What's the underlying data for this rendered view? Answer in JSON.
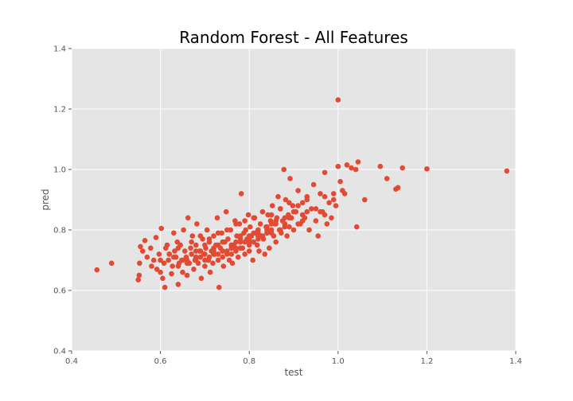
{
  "chart_data": {
    "type": "scatter",
    "title": "Random Forest - All Features",
    "xlabel": "test",
    "ylabel": "pred",
    "xlim": [
      0.4,
      1.4
    ],
    "ylim": [
      0.4,
      1.4
    ],
    "x_ticks": [
      "0.4",
      "0.6",
      "0.8",
      "1.0",
      "1.2",
      "1.4"
    ],
    "y_ticks": [
      "0.4",
      "0.6",
      "0.8",
      "1.0",
      "1.2",
      "1.4"
    ],
    "grid": true,
    "legend": "none",
    "colors": {
      "point": "#e24a33",
      "background": "#e5e5e5",
      "grid": "#ffffff"
    },
    "x": [
      0.457,
      0.49,
      0.55,
      0.552,
      0.553,
      0.555,
      0.56,
      0.565,
      0.57,
      0.578,
      0.58,
      0.585,
      0.59,
      0.592,
      0.597,
      0.6,
      0.602,
      0.605,
      0.608,
      0.61,
      0.612,
      0.615,
      0.618,
      0.62,
      0.625,
      0.627,
      0.63,
      0.632,
      0.635,
      0.638,
      0.64,
      0.642,
      0.645,
      0.648,
      0.65,
      0.652,
      0.655,
      0.658,
      0.66,
      0.662,
      0.665,
      0.668,
      0.67,
      0.672,
      0.675,
      0.678,
      0.68,
      0.682,
      0.685,
      0.688,
      0.69,
      0.692,
      0.695,
      0.698,
      0.7,
      0.702,
      0.705,
      0.708,
      0.71,
      0.712,
      0.715,
      0.718,
      0.72,
      0.722,
      0.725,
      0.728,
      0.73,
      0.732,
      0.735,
      0.738,
      0.74,
      0.742,
      0.745,
      0.748,
      0.75,
      0.752,
      0.755,
      0.758,
      0.76,
      0.762,
      0.765,
      0.768,
      0.77,
      0.772,
      0.775,
      0.778,
      0.78,
      0.782,
      0.785,
      0.788,
      0.79,
      0.792,
      0.795,
      0.798,
      0.8,
      0.802,
      0.805,
      0.808,
      0.81,
      0.812,
      0.815,
      0.818,
      0.82,
      0.822,
      0.825,
      0.828,
      0.83,
      0.832,
      0.835,
      0.838,
      0.84,
      0.842,
      0.845,
      0.848,
      0.85,
      0.852,
      0.855,
      0.858,
      0.86,
      0.862,
      0.865,
      0.868,
      0.87,
      0.872,
      0.875,
      0.878,
      0.88,
      0.882,
      0.885,
      0.888,
      0.89,
      0.892,
      0.895,
      0.898,
      0.9,
      0.905,
      0.91,
      0.915,
      0.92,
      0.925,
      0.93,
      0.935,
      0.94,
      0.945,
      0.95,
      0.955,
      0.96,
      0.965,
      0.97,
      0.975,
      0.98,
      0.985,
      0.99,
      0.995,
      1.0,
      1.005,
      1.01,
      1.015,
      1.02,
      1.03,
      1.04,
      1.042,
      1.045,
      1.06,
      1.095,
      1.11,
      1.13,
      1.135,
      1.145,
      1.2,
      1.38,
      1.0,
      0.6,
      0.62,
      0.64,
      0.66,
      0.68,
      0.7,
      0.72,
      0.74,
      0.76,
      0.78,
      0.8,
      0.82,
      0.84,
      0.86,
      0.88,
      0.9,
      0.66,
      0.68,
      0.7,
      0.72,
      0.74,
      0.76,
      0.78,
      0.8,
      0.82,
      0.84,
      0.86,
      0.7,
      0.72,
      0.74,
      0.76,
      0.78,
      0.8,
      0.82,
      0.84,
      0.74,
      0.76,
      0.78,
      0.8,
      0.82,
      0.67,
      0.69,
      0.71,
      0.73,
      0.75,
      0.77,
      0.79,
      0.81,
      0.83,
      0.85,
      0.87,
      0.89,
      0.91,
      0.93,
      0.95,
      0.97,
      0.99,
      0.63,
      0.65,
      0.69,
      0.73,
      0.77,
      0.81,
      0.85,
      0.89,
      0.93,
      0.97,
      0.68,
      0.72,
      0.76,
      0.8,
      0.84,
      0.88,
      0.92,
      0.96,
      0.71,
      0.75,
      0.79,
      0.83,
      0.87,
      0.91,
      0.73,
      0.77,
      0.81,
      0.85,
      0.64,
      0.68,
      0.72,
      0.76,
      0.8,
      0.84,
      0.88,
      0.92
    ],
    "y": [
      0.668,
      0.69,
      0.635,
      0.65,
      0.69,
      0.745,
      0.73,
      0.765,
      0.71,
      0.74,
      0.68,
      0.7,
      0.775,
      0.67,
      0.72,
      0.66,
      0.805,
      0.64,
      0.69,
      0.61,
      0.74,
      0.75,
      0.7,
      0.72,
      0.655,
      0.68,
      0.79,
      0.73,
      0.71,
      0.76,
      0.62,
      0.69,
      0.75,
      0.7,
      0.66,
      0.8,
      0.73,
      0.71,
      0.65,
      0.84,
      0.69,
      0.74,
      0.72,
      0.78,
      0.67,
      0.7,
      0.75,
      0.82,
      0.69,
      0.73,
      0.71,
      0.64,
      0.77,
      0.72,
      0.68,
      0.74,
      0.8,
      0.7,
      0.76,
      0.66,
      0.73,
      0.69,
      0.78,
      0.72,
      0.75,
      0.84,
      0.7,
      0.61,
      0.74,
      0.79,
      0.73,
      0.68,
      0.76,
      0.86,
      0.72,
      0.77,
      0.7,
      0.8,
      0.74,
      0.69,
      0.75,
      0.83,
      0.73,
      0.78,
      0.71,
      0.82,
      0.76,
      0.92,
      0.74,
      0.79,
      0.72,
      0.8,
      0.77,
      0.85,
      0.73,
      0.81,
      0.78,
      0.7,
      0.76,
      0.84,
      0.79,
      0.75,
      0.8,
      0.73,
      0.82,
      0.78,
      0.86,
      0.77,
      0.72,
      0.81,
      0.79,
      0.85,
      0.74,
      0.83,
      0.8,
      0.88,
      0.78,
      0.82,
      0.76,
      0.84,
      0.91,
      0.8,
      0.87,
      0.79,
      0.83,
      1.0,
      0.82,
      0.9,
      0.78,
      0.85,
      0.81,
      0.97,
      0.84,
      0.88,
      0.8,
      0.86,
      0.93,
      0.82,
      0.89,
      0.84,
      0.91,
      0.8,
      0.87,
      0.95,
      0.83,
      0.78,
      0.92,
      0.86,
      0.99,
      0.82,
      0.89,
      0.84,
      0.9,
      0.88,
      1.01,
      0.96,
      0.93,
      0.92,
      1.015,
      1.005,
      1.0,
      0.81,
      1.025,
      0.9,
      1.01,
      0.97,
      0.935,
      0.94,
      1.005,
      1.002,
      0.995,
      1.23,
      0.7,
      0.72,
      0.74,
      0.7,
      0.73,
      0.75,
      0.72,
      0.76,
      0.74,
      0.78,
      0.77,
      0.79,
      0.8,
      0.82,
      0.84,
      0.86,
      0.69,
      0.71,
      0.72,
      0.74,
      0.73,
      0.75,
      0.77,
      0.78,
      0.8,
      0.79,
      0.83,
      0.7,
      0.72,
      0.71,
      0.74,
      0.76,
      0.75,
      0.77,
      0.81,
      0.73,
      0.72,
      0.74,
      0.76,
      0.78,
      0.76,
      0.78,
      0.77,
      0.79,
      0.8,
      0.82,
      0.83,
      0.84,
      0.86,
      0.85,
      0.87,
      0.89,
      0.88,
      0.9,
      0.87,
      0.91,
      0.92,
      0.71,
      0.7,
      0.73,
      0.75,
      0.76,
      0.79,
      0.82,
      0.84,
      0.86,
      0.85,
      0.7,
      0.72,
      0.75,
      0.77,
      0.79,
      0.81,
      0.83,
      0.86,
      0.71,
      0.73,
      0.76,
      0.78,
      0.8,
      0.82,
      0.72,
      0.74,
      0.76,
      0.79,
      0.68,
      0.71,
      0.73,
      0.75,
      0.78,
      0.8,
      0.82,
      0.85
    ]
  }
}
